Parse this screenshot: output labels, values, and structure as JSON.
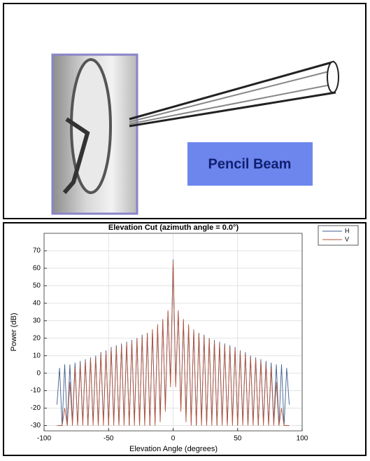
{
  "diagram": {
    "label": "Pencil Beam"
  },
  "chart_data": {
    "type": "line",
    "title": "Elevation Cut (azimuth angle = 0.0°)",
    "x_label": "Elevation Angle (degrees)",
    "y_label": "Power (dB)",
    "x": [
      -90,
      -88,
      -86,
      -84,
      -82,
      -80,
      -78,
      -76,
      -74,
      -72,
      -70,
      -68,
      -66,
      -64,
      -62,
      -60,
      -58,
      -56,
      -54,
      -52,
      -50,
      -48,
      -46,
      -44,
      -42,
      -40,
      -38,
      -36,
      -34,
      -32,
      -30,
      -28,
      -26,
      -24,
      -22,
      -20,
      -18,
      -16,
      -14,
      -12,
      -10,
      -8,
      -6,
      -4,
      -2,
      0,
      2,
      4,
      6,
      8,
      10,
      12,
      14,
      16,
      18,
      20,
      22,
      24,
      26,
      28,
      30,
      32,
      34,
      36,
      38,
      40,
      42,
      44,
      46,
      48,
      50,
      52,
      54,
      56,
      58,
      60,
      62,
      64,
      66,
      68,
      70,
      72,
      74,
      76,
      78,
      80,
      82,
      84,
      86,
      88,
      90
    ],
    "series": [
      {
        "name": "H",
        "color": "#3f5f8f",
        "values": [
          -18,
          3,
          -30,
          5,
          -30,
          5,
          -28,
          6,
          -30,
          7,
          -28,
          8,
          -30,
          9,
          -28,
          10,
          -30,
          12,
          -28,
          13,
          -30,
          15,
          -28,
          16,
          -30,
          17,
          -28,
          18,
          -30,
          19,
          -28,
          20,
          -30,
          22,
          -28,
          23,
          -30,
          25,
          -28,
          27,
          -25,
          30,
          -20,
          35,
          -5,
          65,
          -5,
          35,
          -20,
          30,
          -25,
          27,
          -28,
          25,
          -30,
          23,
          -28,
          22,
          -30,
          20,
          -28,
          19,
          -30,
          18,
          -28,
          17,
          -30,
          16,
          -28,
          15,
          -30,
          13,
          -28,
          12,
          -30,
          10,
          -28,
          9,
          -30,
          8,
          -28,
          7,
          -30,
          6,
          -28,
          5,
          -30,
          5,
          -30,
          3,
          -18
        ]
      },
      {
        "name": "V",
        "color": "#b5553c",
        "values": [
          -30,
          -30,
          -30,
          -20,
          -30,
          -5,
          -30,
          3,
          -30,
          5,
          -30,
          7,
          -30,
          8,
          -30,
          9,
          -30,
          11,
          -30,
          12,
          -30,
          14,
          -30,
          15,
          -30,
          16,
          -30,
          17,
          -30,
          18,
          -30,
          20,
          -30,
          21,
          -30,
          23,
          -30,
          25,
          -30,
          28,
          -28,
          31,
          -22,
          36,
          -8,
          64,
          -8,
          36,
          -22,
          31,
          -28,
          28,
          -30,
          25,
          -30,
          23,
          -30,
          21,
          -30,
          20,
          -30,
          18,
          -30,
          17,
          -30,
          16,
          -30,
          15,
          -30,
          14,
          -30,
          12,
          -30,
          11,
          -30,
          9,
          -30,
          8,
          -30,
          7,
          -30,
          5,
          -30,
          3,
          -30,
          -5,
          -30,
          -20,
          -30,
          -30,
          -30
        ]
      }
    ],
    "xlim": [
      -100,
      100
    ],
    "ylim": [
      -33,
      80
    ],
    "xticks": [
      -100,
      -50,
      0,
      50,
      100
    ],
    "yticks": [
      -30,
      -20,
      -10,
      0,
      10,
      20,
      30,
      40,
      50,
      60,
      70
    ],
    "grid": true,
    "legend": "outside"
  }
}
